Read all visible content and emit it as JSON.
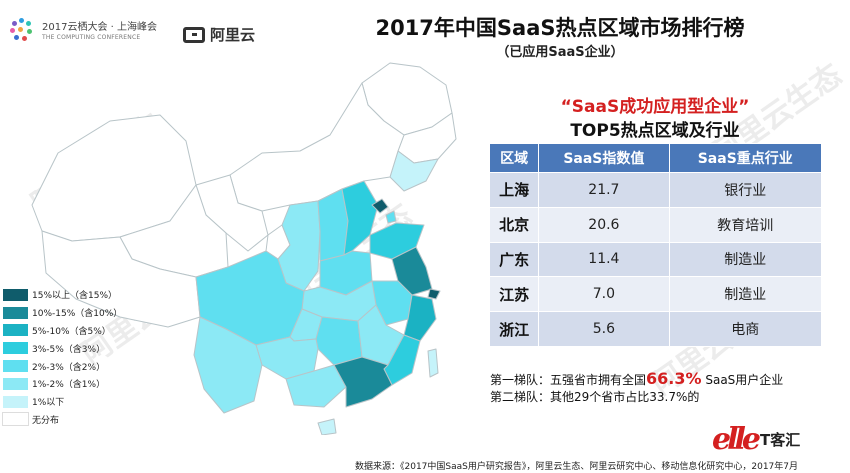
{
  "header": {
    "event_name": "2017云栖大会 · 上海峰会",
    "event_name_en": "THE COMPUTING CONFERENCE",
    "partner_logo": "阿里云",
    "title": "2017年中国SaaS热点区域市场排行榜",
    "subtitle": "（已应用SaaS企业）"
  },
  "watermark": "阿里云生态",
  "colors": {
    "tier_15_plus": "#0f5c6b",
    "tier_10_15": "#1a8a99",
    "tier_5_10": "#1bb2c3",
    "tier_3_5": "#2dcdde",
    "tier_2_3": "#5fdff0",
    "tier_1_2": "#8ce9f5",
    "tier_below_1": "#c5f3fa",
    "tier_none": "#ffffff",
    "table_header": "#4a78b9",
    "highlight_red": "#d42020"
  },
  "legend": [
    {
      "label": "15%以上（含15%）",
      "color": "#0f5c6b"
    },
    {
      "label": "10%-15%（含10%）",
      "color": "#1a8a99"
    },
    {
      "label": "5%-10%（含5%）",
      "color": "#1bb2c3"
    },
    {
      "label": "3%-5%（含3%）",
      "color": "#2dcdde"
    },
    {
      "label": "2%-3%（含2%）",
      "color": "#5fdff0"
    },
    {
      "label": "1%-2%（含1%）",
      "color": "#8ce9f5"
    },
    {
      "label": "1%以下",
      "color": "#c5f3fa"
    },
    {
      "label": "无分布",
      "color": "#ffffff"
    }
  ],
  "panel": {
    "title_quoted": "“SaaS成功应用型企业”",
    "title_main": "TOP5热点区域及行业"
  },
  "chart_data": {
    "type": "table",
    "columns": [
      "区域",
      "SaaS指数值",
      "SaaS重点行业"
    ],
    "rows": [
      {
        "region": "上海",
        "index": "21.7",
        "industry": "银行业"
      },
      {
        "region": "北京",
        "index": "20.6",
        "industry": "教育培训"
      },
      {
        "region": "广东",
        "index": "11.4",
        "industry": "制造业"
      },
      {
        "region": "江苏",
        "index": "7.0",
        "industry": "制造业"
      },
      {
        "region": "浙江",
        "index": "5.6",
        "industry": "电商"
      }
    ]
  },
  "notes": {
    "tier1_prefix": "第一梯队：五强省市拥有全国",
    "tier1_pct": "66.3%",
    "tier1_suffix": " SaaS用户企业",
    "tier2": "第二梯队：其他29个省市占比33.7%的"
  },
  "brand": {
    "script": "elle",
    "name": "T客汇"
  },
  "source": "数据来源：《2017中国SaaS用户研究报告》，阿里云生态、阿里云研究中心、移动信息化研究中心，2017年7月"
}
